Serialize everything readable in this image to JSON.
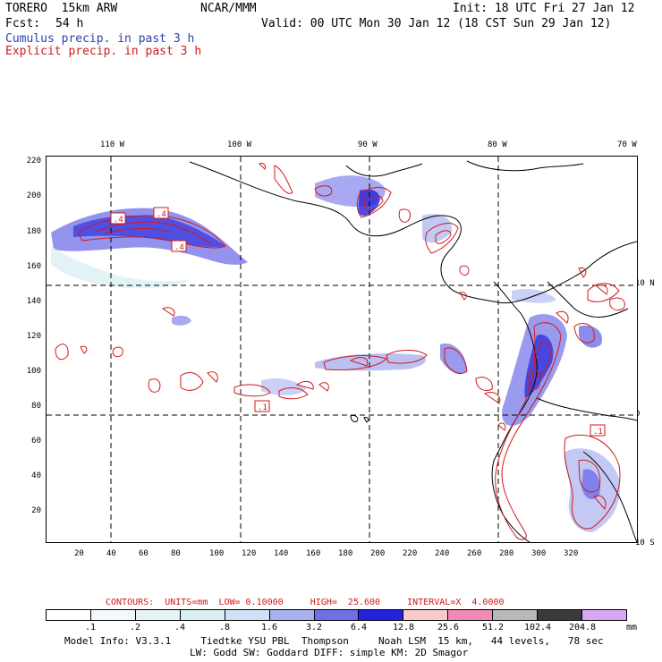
{
  "header": {
    "model": "TORERO  15km ARW",
    "org": "NCAR/MMM",
    "init": "Init: 18 UTC Fri 27 Jan 12",
    "fcst_label": "Fcst:",
    "fcst_value": "54 h",
    "valid": "Valid: 00 UTC Mon 30 Jan 12 (18 CST Sun 29 Jan 12)",
    "legend_cumulus": "Cumulus precip. in past 3 h",
    "legend_explicit": "Explicit precip. in past 3 h"
  },
  "map": {
    "lon_labels": [
      "110 W",
      "100 W",
      "90 W",
      "80 W",
      "70 W"
    ],
    "lat_labels": [
      "10 N",
      "0",
      "10 S"
    ],
    "y_ticks": [
      "220",
      "200",
      "180",
      "160",
      "140",
      "120",
      "100",
      "80",
      "60",
      "40",
      "20"
    ],
    "x_ticks": [
      "20",
      "40",
      "60",
      "80",
      "100",
      "120",
      "140",
      "160",
      "180",
      "200",
      "220",
      "240",
      "260",
      "280",
      "300",
      "320"
    ],
    "contour_labels": [
      ".4",
      ".4",
      ".4",
      ".1",
      ".1"
    ]
  },
  "footer": {
    "contours_line": "CONTOURS:  UNITS=mm  LOW= 0.10000     HIGH=  25.600     INTERVAL=X  4.0000",
    "units": "mm",
    "colorbar_labels": [
      ".1",
      ".2",
      ".4",
      ".8",
      "1.6",
      "3.2",
      "6.4",
      "12.8",
      "25.6",
      "51.2",
      "102.4",
      "204.8"
    ],
    "colorbar_colors": [
      "#ffffff",
      "#f3f8fb",
      "#e6f2f6",
      "#d9f0f2",
      "#cfe0f7",
      "#a9b2f0",
      "#6f6fe8",
      "#2222dd",
      "#f7c9c9",
      "#f08ab6",
      "#b8b8b8",
      "#3a3a3a",
      "#d7a6f2"
    ],
    "model_info": "Model Info: V3.3.1     Tiedtke YSU PBL  Thompson     Noah LSM  15 km,   44 levels,   78 sec",
    "model_info2": "LW: Godd SW: Goddard DIFF: simple KM: 2D Smagor"
  },
  "colors": {
    "cumulus": "#2a3fb0",
    "explicit": "#d11a1a"
  }
}
